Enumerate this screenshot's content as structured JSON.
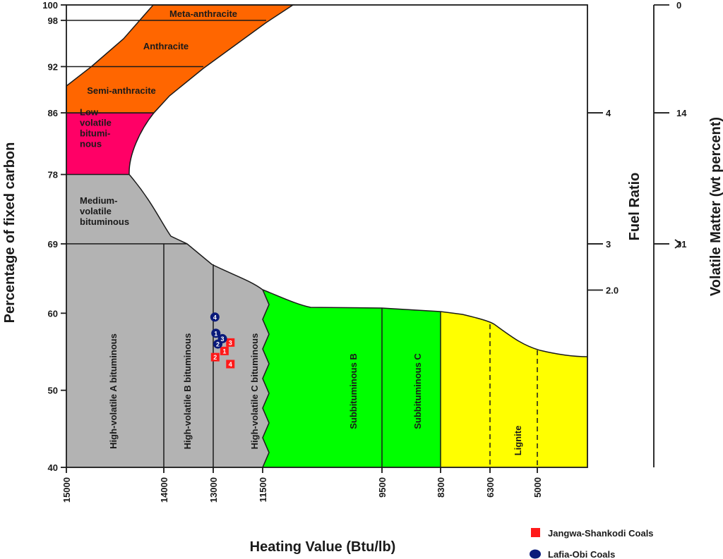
{
  "chart_data": {
    "type": "scatter",
    "title": "",
    "xlabel": "Heating Value (Btu/lb)",
    "ylabel": "Percentage of fixed carbon",
    "right_axis_1_label": "Fuel Ratio",
    "right_axis_2_label": "Volatile Matter (wt percent)",
    "x_ticks": [
      "15000",
      "14000",
      "13000",
      "11500",
      "9500",
      "8300",
      "6300",
      "5000"
    ],
    "y_ticks": [
      "100",
      "98",
      "92",
      "86",
      "78",
      "69",
      "60",
      "50",
      "40"
    ],
    "fuel_ratio_ticks": [
      "4",
      "3",
      "2.0"
    ],
    "volatile_matter_ticks": [
      "0",
      "14",
      "31"
    ],
    "ylim": [
      40,
      100
    ],
    "rank_regions": [
      {
        "name": "Meta-anthracite",
        "color": "#ff6600"
      },
      {
        "name": "Anthracite",
        "color": "#ff6600"
      },
      {
        "name": "Semi-anthracite",
        "color": "#ff6600"
      },
      {
        "name": "Low-\nvolatile\nbitumi-\nnous",
        "color": "#ff0066"
      },
      {
        "name": "Medium-\nvolatile\nbituminous",
        "color": "#b3b3b3"
      },
      {
        "name": "High-volatile A bituminous",
        "color": "#b3b3b3"
      },
      {
        "name": "High-volatile B bituminous",
        "color": "#b3b3b3"
      },
      {
        "name": "High-volatile C bituminous",
        "color": "#b3b3b3"
      },
      {
        "name": "Subbituminous B",
        "color": "#00ff00"
      },
      {
        "name": "Subbituminous C",
        "color": "#00ff00"
      },
      {
        "name": "Lignite",
        "color": "#ffff00"
      }
    ],
    "series": [
      {
        "name": "Jangwa-Shankodi Coals",
        "marker": "square",
        "color": "#ff1a1a",
        "points": [
          {
            "label": "1",
            "x": 12660,
            "y": 55.1
          },
          {
            "label": "2",
            "x": 12940,
            "y": 54.3
          },
          {
            "label": "3",
            "x": 12480,
            "y": 56.2
          },
          {
            "label": "4",
            "x": 12480,
            "y": 53.4
          }
        ]
      },
      {
        "name": "Lafia-Obi Coals",
        "marker": "circle",
        "color": "#0a1a7a",
        "points": [
          {
            "label": "1",
            "x": 12920,
            "y": 57.4
          },
          {
            "label": "2",
            "x": 12860,
            "y": 56.0
          },
          {
            "label": "3",
            "x": 12720,
            "y": 56.7
          },
          {
            "label": "4",
            "x": 12950,
            "y": 59.5
          }
        ]
      }
    ],
    "legend_position": "bottom-right"
  }
}
